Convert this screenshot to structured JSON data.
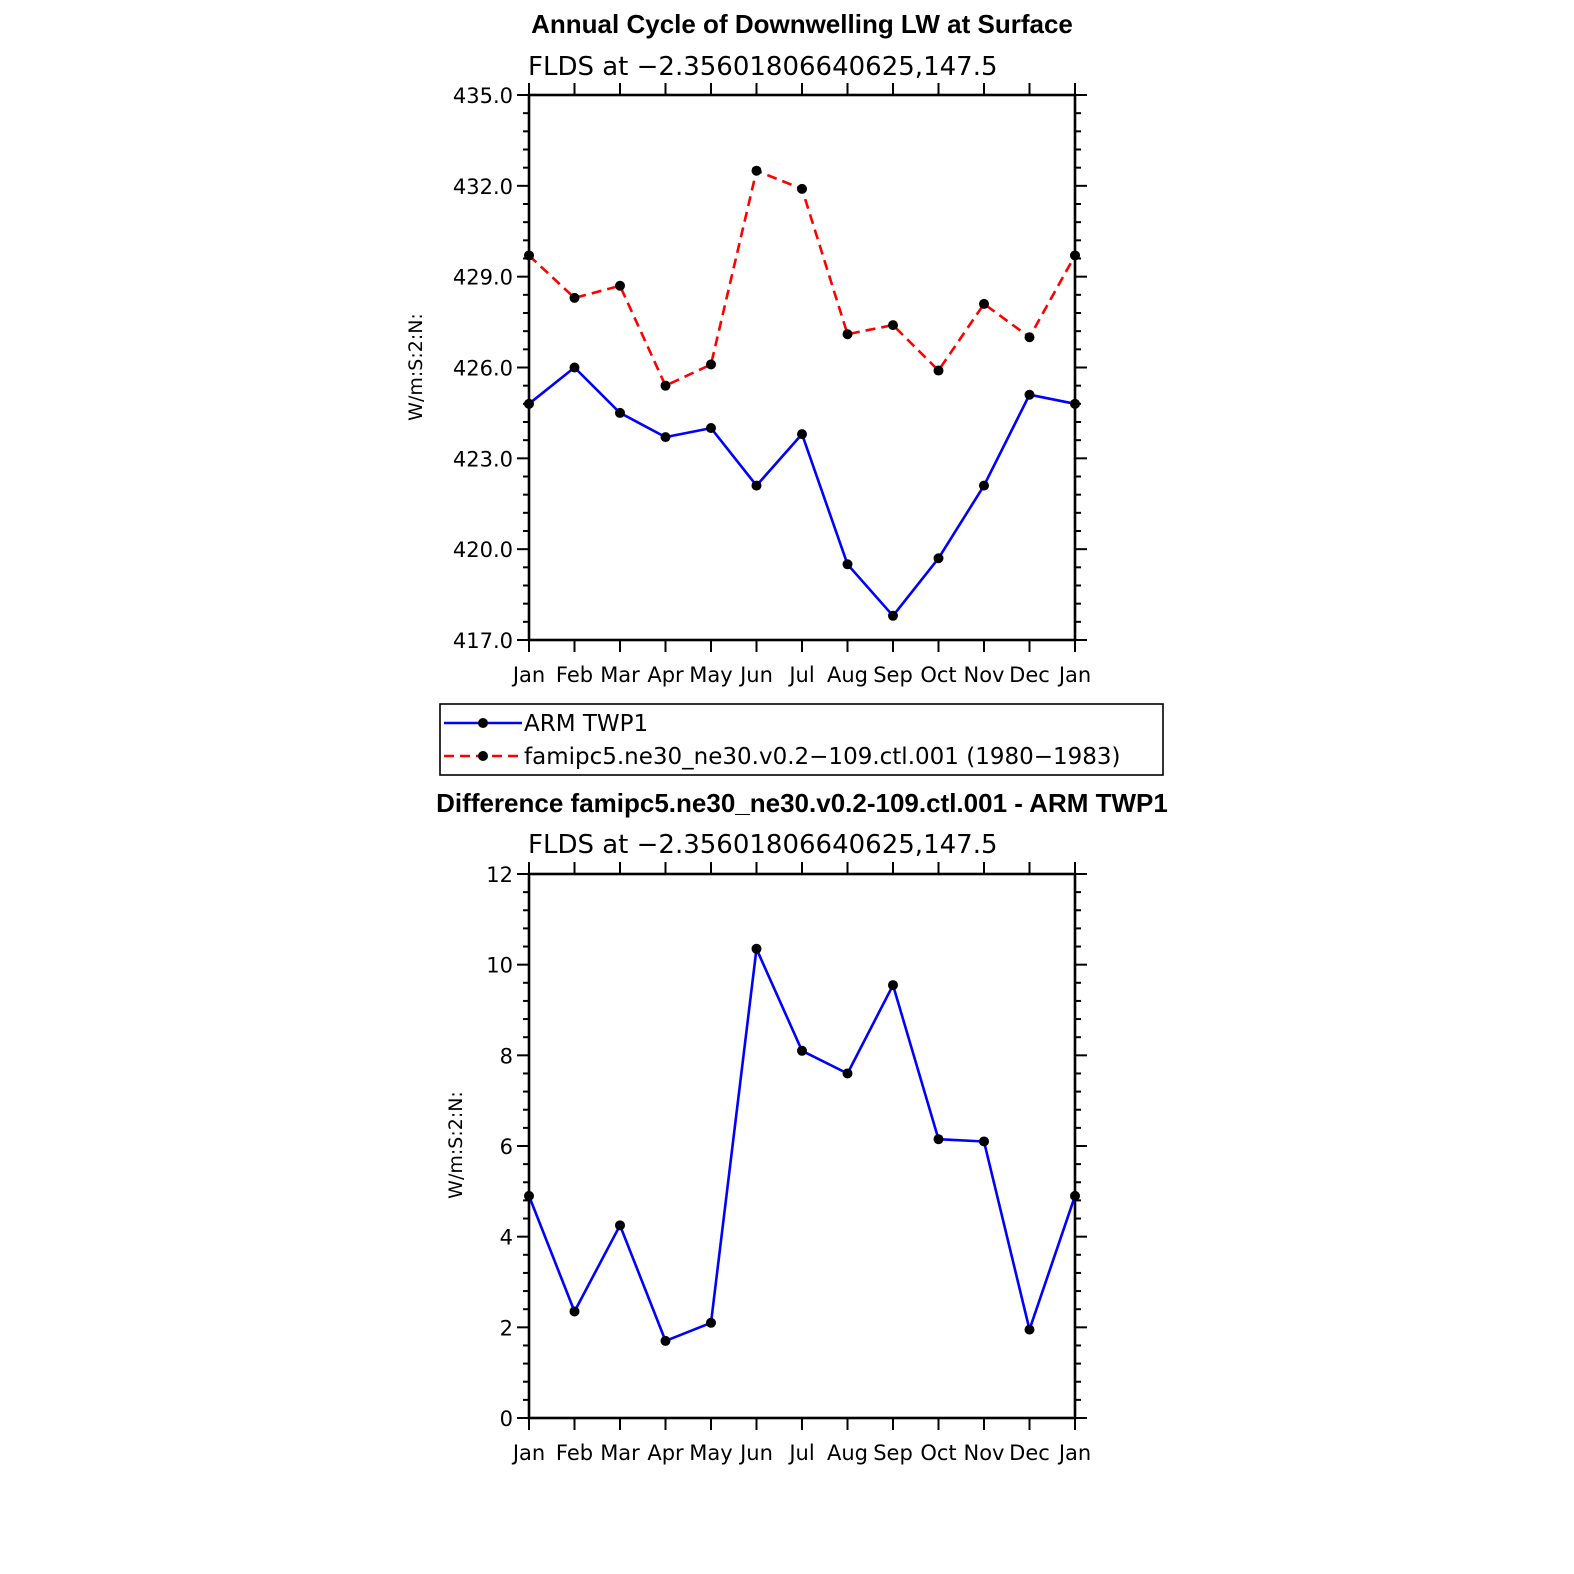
{
  "chart_data": [
    {
      "type": "line",
      "title": "Annual Cycle of Downwelling LW at Surface",
      "subtitle": "FLDS at −2.35601806640625,147.5",
      "xlabel": "",
      "ylabel": "W/m:S:2:N:",
      "categories": [
        "Jan",
        "Feb",
        "Mar",
        "Apr",
        "May",
        "Jun",
        "Jul",
        "Aug",
        "Sep",
        "Oct",
        "Nov",
        "Dec",
        "Jan"
      ],
      "ylim": [
        417.0,
        435.0
      ],
      "yticks": [
        "417.0",
        "420.0",
        "423.0",
        "426.0",
        "429.0",
        "432.0",
        "435.0"
      ],
      "grid": false,
      "legend_position": "bottom",
      "series": [
        {
          "name": "ARM TWP1",
          "color": "#0000ff",
          "dash": "solid",
          "values": [
            424.8,
            426.0,
            424.5,
            423.7,
            424.0,
            422.1,
            423.8,
            419.5,
            417.8,
            419.7,
            422.1,
            425.1,
            424.8
          ]
        },
        {
          "name": "famipc5.ne30_ne30.v0.2−109.ctl.001 (1980−1983)",
          "color": "#ff0000",
          "dash": "dashed",
          "values": [
            429.7,
            428.3,
            428.7,
            425.4,
            426.1,
            432.5,
            431.9,
            427.1,
            427.4,
            425.9,
            428.1,
            427.0,
            429.7
          ]
        }
      ]
    },
    {
      "type": "line",
      "title": "Difference famipc5.ne30_ne30.v0.2-109.ctl.001 - ARM TWP1",
      "subtitle": "FLDS at −2.35601806640625,147.5",
      "xlabel": "",
      "ylabel": "W/m:S:2:N:",
      "categories": [
        "Jan",
        "Feb",
        "Mar",
        "Apr",
        "May",
        "Jun",
        "Jul",
        "Aug",
        "Sep",
        "Oct",
        "Nov",
        "Dec",
        "Jan"
      ],
      "ylim": [
        0,
        12
      ],
      "yticks": [
        "0",
        "2",
        "4",
        "6",
        "8",
        "10",
        "12"
      ],
      "grid": false,
      "series": [
        {
          "color": "#0000ff",
          "dash": "solid",
          "values": [
            4.9,
            2.35,
            4.25,
            1.7,
            2.1,
            10.35,
            8.1,
            7.6,
            9.55,
            6.15,
            6.1,
            1.95,
            4.9
          ]
        }
      ]
    }
  ]
}
